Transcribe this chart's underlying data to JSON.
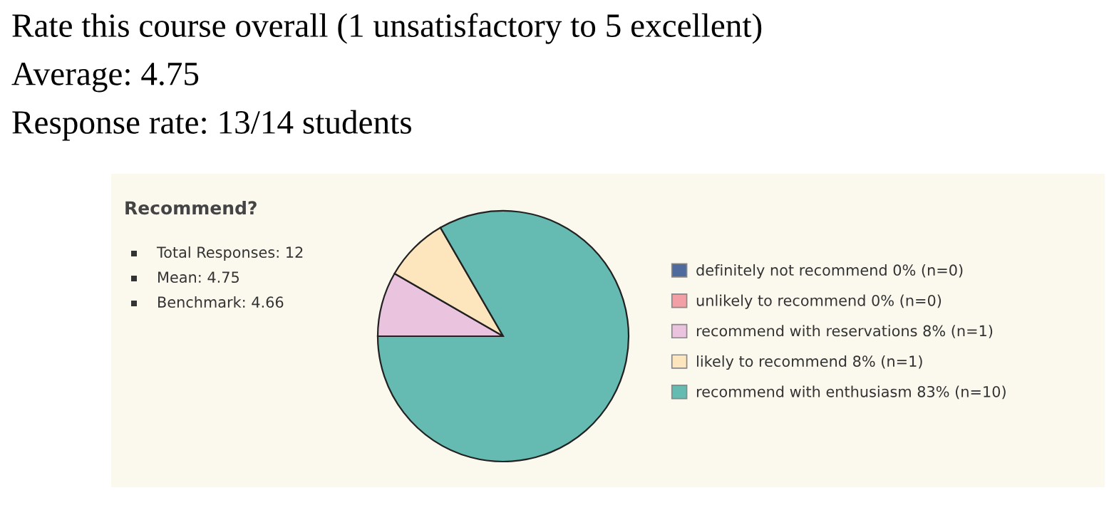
{
  "chart_data": {
    "type": "pie",
    "title": "Rate this course overall (1 unsatisfactory to 5 excellent)",
    "subtitle": "Average: 4.75",
    "annotations": [
      "Response rate: 13/14 students",
      "Recommend?",
      "Total Responses: 12",
      "Mean: 4.75",
      "Benchmark: 4.66"
    ],
    "categories": [
      "definitely not recommend 0% (n=0)",
      "unlikely to recommend 0% (n=0)",
      "recommend with reservations 8% (n=1)",
      "likely to recommend 8% (n=1)",
      "recommend with enthusiasm 83% (n=10)"
    ],
    "values": [
      0,
      0,
      1,
      1,
      10
    ],
    "colors": [
      "#4f6a9c",
      "#f2a0a6",
      "#eac3df",
      "#fde6bd",
      "#65bbb2"
    ],
    "legend": "right"
  }
}
